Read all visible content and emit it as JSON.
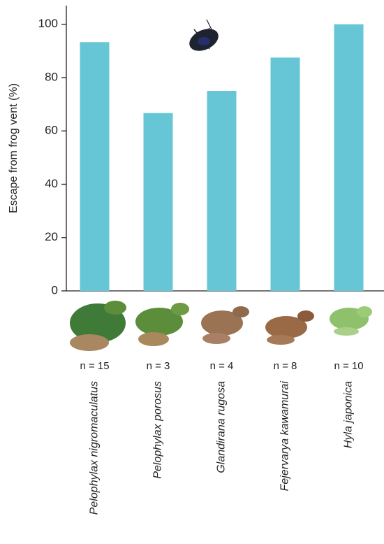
{
  "chart_data": {
    "type": "bar",
    "ylabel": "Escape from frog vent (%)",
    "categories": [
      "Pelophylax nigromaculatus",
      "Pelophylax porosus",
      "Glandirana rugosa",
      "Fejervarya kawamurai",
      "Hyla japonica"
    ],
    "n_labels": [
      "n = 15",
      "n = 3",
      "n = 4",
      "n = 8",
      "n = 10"
    ],
    "values": [
      93.3,
      66.7,
      75,
      87.5,
      100
    ],
    "color": "#67c6d6",
    "ylim": [
      0,
      107
    ],
    "yticks": [
      0,
      20,
      40,
      60,
      80,
      100
    ]
  }
}
